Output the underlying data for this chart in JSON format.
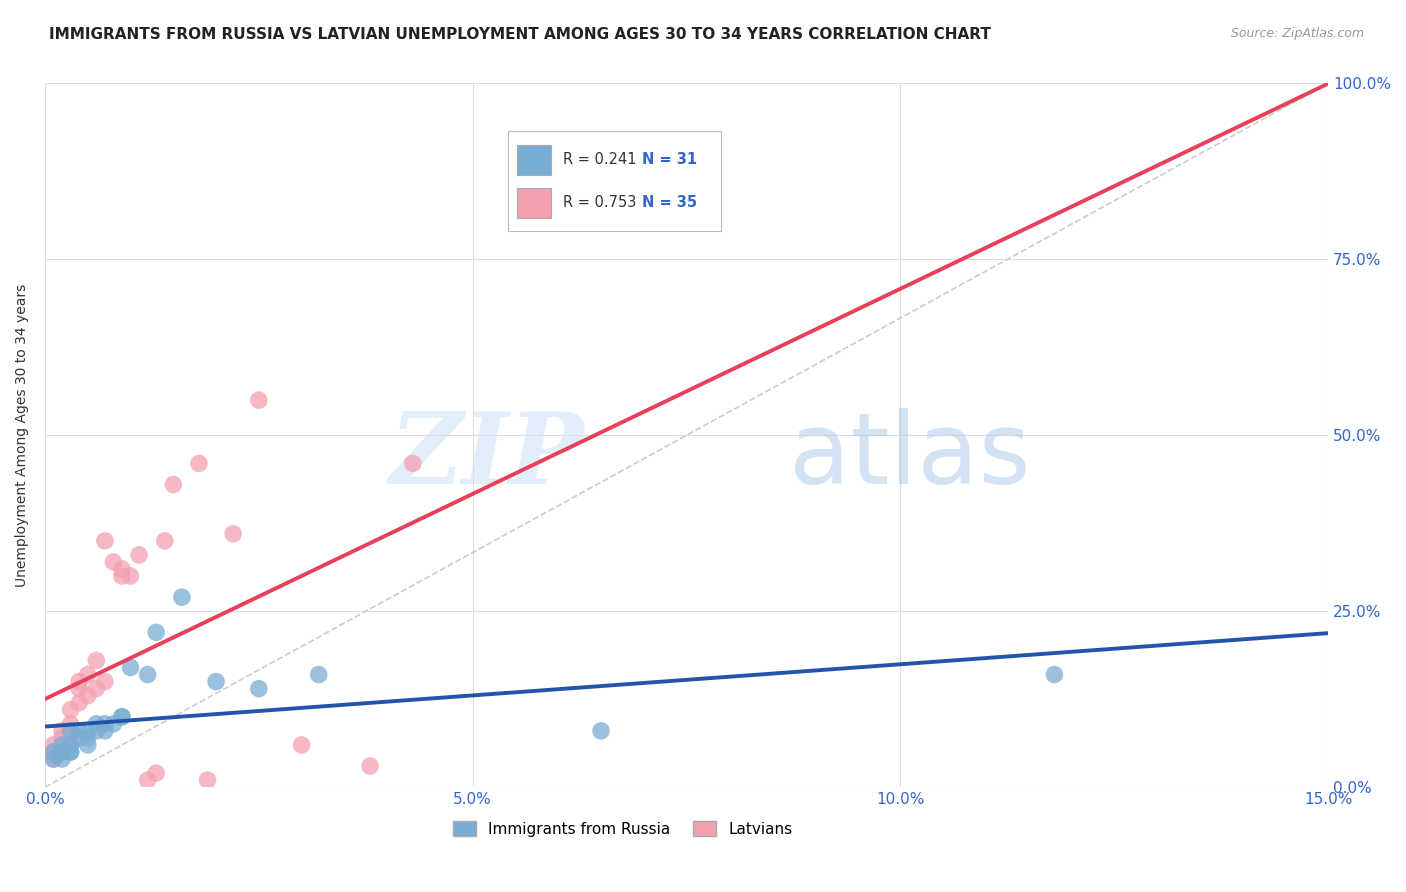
{
  "title": "IMMIGRANTS FROM RUSSIA VS LATVIAN UNEMPLOYMENT AMONG AGES 30 TO 34 YEARS CORRELATION CHART",
  "source": "Source: ZipAtlas.com",
  "ylabel": "Unemployment Among Ages 30 to 34 years",
  "xlim": [
    0.0,
    0.15
  ],
  "ylim": [
    0.0,
    1.0
  ],
  "xticks": [
    0.0,
    0.05,
    0.1,
    0.15
  ],
  "xtick_labels": [
    "0.0%",
    "5.0%",
    "10.0%",
    "15.0%"
  ],
  "yticks_right": [
    0.0,
    0.25,
    0.5,
    0.75,
    1.0
  ],
  "ytick_labels_right": [
    "0.0%",
    "25.0%",
    "50.0%",
    "75.0%",
    "100.0%"
  ],
  "blue_R": 0.241,
  "blue_N": 31,
  "pink_R": 0.753,
  "pink_N": 35,
  "blue_color": "#7aadd4",
  "pink_color": "#f4a0b0",
  "blue_line_color": "#2255aa",
  "pink_line_color": "#e8405a",
  "title_fontsize": 11,
  "source_fontsize": 9,
  "watermark_zip": "ZIP",
  "watermark_atlas": "atlas",
  "blue_x": [
    0.001,
    0.001,
    0.002,
    0.002,
    0.002,
    0.002,
    0.003,
    0.003,
    0.003,
    0.003,
    0.004,
    0.004,
    0.005,
    0.005,
    0.005,
    0.006,
    0.006,
    0.007,
    0.007,
    0.008,
    0.009,
    0.009,
    0.01,
    0.012,
    0.013,
    0.016,
    0.02,
    0.025,
    0.032,
    0.065,
    0.118
  ],
  "blue_y": [
    0.04,
    0.05,
    0.04,
    0.05,
    0.05,
    0.06,
    0.05,
    0.05,
    0.06,
    0.08,
    0.07,
    0.08,
    0.06,
    0.07,
    0.08,
    0.08,
    0.09,
    0.08,
    0.09,
    0.09,
    0.1,
    0.1,
    0.17,
    0.16,
    0.22,
    0.27,
    0.15,
    0.14,
    0.16,
    0.08,
    0.16
  ],
  "pink_x": [
    0.001,
    0.001,
    0.001,
    0.002,
    0.002,
    0.002,
    0.003,
    0.003,
    0.003,
    0.003,
    0.004,
    0.004,
    0.004,
    0.005,
    0.005,
    0.006,
    0.006,
    0.007,
    0.007,
    0.008,
    0.009,
    0.009,
    0.01,
    0.011,
    0.012,
    0.013,
    0.014,
    0.015,
    0.018,
    0.019,
    0.022,
    0.025,
    0.03,
    0.038,
    0.043
  ],
  "pink_y": [
    0.04,
    0.05,
    0.06,
    0.05,
    0.07,
    0.08,
    0.06,
    0.08,
    0.09,
    0.11,
    0.12,
    0.14,
    0.15,
    0.13,
    0.16,
    0.14,
    0.18,
    0.15,
    0.35,
    0.32,
    0.3,
    0.31,
    0.3,
    0.33,
    0.01,
    0.02,
    0.35,
    0.43,
    0.46,
    0.01,
    0.36,
    0.55,
    0.06,
    0.03,
    0.46
  ],
  "grid_color": "#dddddd",
  "background_color": "#ffffff"
}
